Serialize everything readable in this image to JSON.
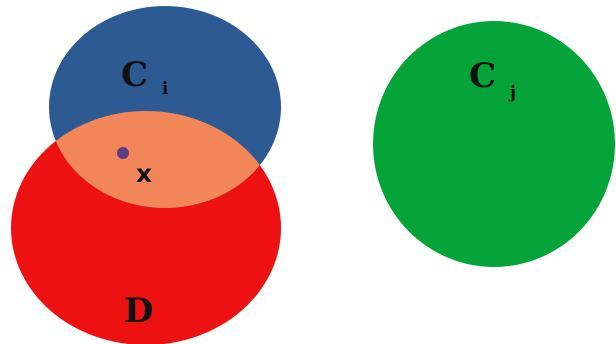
{
  "diagram": {
    "sets": [
      {
        "id": "Ci",
        "name": "C",
        "subscript": "i",
        "color": "#2d5a92"
      },
      {
        "id": "D",
        "name": "D",
        "subscript": "",
        "color": "#ee1111"
      },
      {
        "id": "Cj",
        "name": "C",
        "subscript": "j",
        "color": "#05a438"
      }
    ],
    "intersection": {
      "color": "#f38658"
    },
    "point": {
      "label": "x",
      "color": "#5f3d86"
    },
    "background": "#ffffff"
  }
}
